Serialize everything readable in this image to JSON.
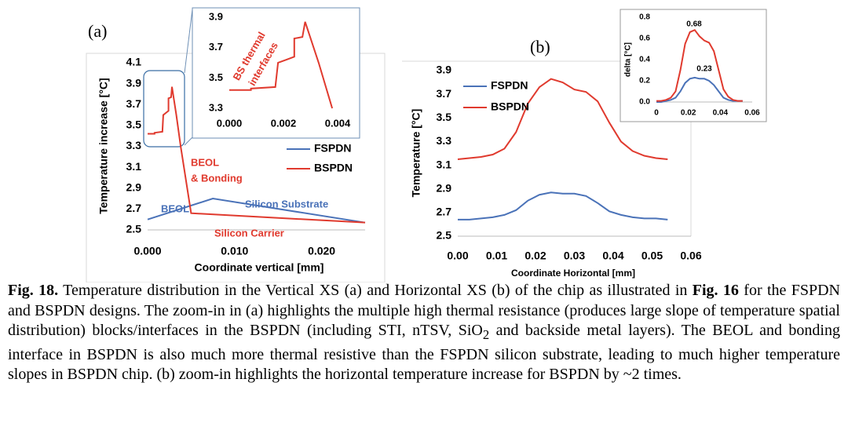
{
  "chart_data": [
    {
      "type": "line",
      "panel_label": "(a)",
      "x_label": "Coordinate vertical [mm]",
      "y_label": "Temperature increase [°C]",
      "xlim": [
        0,
        0.025
      ],
      "ylim": [
        2.5,
        4.1
      ],
      "xticks": [
        {
          "value": 0,
          "label": "0.000"
        },
        {
          "value": 0.01,
          "label": "0.010"
        },
        {
          "value": 0.02,
          "label": "0.020"
        }
      ],
      "yticks": [
        2.5,
        2.7,
        2.9,
        3.1,
        3.3,
        3.5,
        3.7,
        3.9,
        4.1
      ],
      "series": [
        {
          "name": "FSPDN",
          "color": "#4a72b8",
          "x": [
            0,
            0.0075,
            0.025
          ],
          "values": [
            2.6,
            2.8,
            2.57
          ]
        },
        {
          "name": "BSPDN",
          "color": "#e03a2e",
          "x": [
            0,
            0.0008,
            0.0008,
            0.0017,
            0.0018,
            0.0021,
            0.0024,
            0.0024,
            0.0027,
            0.0028,
            0.0033,
            0.0038,
            0.005,
            0.025
          ],
          "values": [
            3.42,
            3.42,
            3.43,
            3.44,
            3.6,
            3.62,
            3.64,
            3.76,
            3.77,
            3.87,
            3.6,
            3.3,
            2.66,
            2.57
          ]
        }
      ],
      "annotations": [
        {
          "text": "BEOL",
          "color": "#4a72b8"
        },
        {
          "text": "Silicon Substrate",
          "color": "#4a72b8"
        },
        {
          "text": "BEOL",
          "color": "#e03a2e"
        },
        {
          "text": "& Bonding",
          "color": "#e03a2e"
        },
        {
          "text": "Silicon Carrier",
          "color": "#e03a2e"
        }
      ]
    },
    {
      "type": "line",
      "xlim": [
        0,
        0.004
      ],
      "ylim": [
        3.3,
        3.9
      ],
      "xticks": [
        {
          "value": 0,
          "label": "0.000"
        },
        {
          "value": 0.002,
          "label": "0.002"
        },
        {
          "value": 0.004,
          "label": "0.004"
        }
      ],
      "yticks": [
        3.3,
        3.5,
        3.7,
        3.9
      ],
      "series": [
        {
          "color": "#e03a2e",
          "x": [
            0,
            0.0008,
            0.0008,
            0.0017,
            0.0018,
            0.0021,
            0.0024,
            0.0024,
            0.0027,
            0.0028,
            0.0033,
            0.0038
          ],
          "values": [
            3.42,
            3.42,
            3.43,
            3.44,
            3.6,
            3.62,
            3.64,
            3.76,
            3.77,
            3.87,
            3.6,
            3.3
          ]
        }
      ],
      "annotations": [
        {
          "text": "BS thermal",
          "color": "#e03a2e"
        },
        {
          "text": "interfaces",
          "color": "#e03a2e"
        }
      ]
    },
    {
      "type": "line",
      "panel_label": "(b)",
      "x_label": "Coordinate Horizontal [mm]",
      "y_label": "Temperature [°C]",
      "xlim": [
        0,
        0.06
      ],
      "ylim": [
        2.5,
        3.9
      ],
      "xticks": [
        {
          "value": 0,
          "label": "0.00"
        },
        0.01,
        0.02,
        0.03,
        0.04,
        0.05,
        0.06
      ],
      "yticks": [
        2.5,
        2.7,
        2.9,
        3.1,
        3.3,
        3.5,
        3.7,
        3.9
      ],
      "x": [
        0,
        0.003,
        0.006,
        0.009,
        0.012,
        0.015,
        0.018,
        0.021,
        0.024,
        0.027,
        0.03,
        0.033,
        0.036,
        0.039,
        0.042,
        0.045,
        0.048,
        0.051,
        0.054
      ],
      "series": [
        {
          "name": "FSPDN",
          "color": "#4a72b8",
          "values": [
            2.64,
            2.64,
            2.65,
            2.66,
            2.68,
            2.72,
            2.8,
            2.85,
            2.87,
            2.86,
            2.86,
            2.84,
            2.78,
            2.71,
            2.68,
            2.66,
            2.65,
            2.65,
            2.64
          ]
        },
        {
          "name": "BSPDN",
          "color": "#e03a2e",
          "values": [
            3.15,
            3.16,
            3.17,
            3.19,
            3.24,
            3.38,
            3.62,
            3.76,
            3.83,
            3.8,
            3.74,
            3.72,
            3.64,
            3.46,
            3.3,
            3.22,
            3.18,
            3.16,
            3.15
          ]
        }
      ]
    },
    {
      "type": "line",
      "y_label": "delta [°C]",
      "xlim": [
        0,
        0.06
      ],
      "ylim": [
        0,
        0.8
      ],
      "xticks": [
        0,
        0.02,
        0.04,
        0.06
      ],
      "yticks": [
        {
          "value": 0,
          "label": "0.0"
        },
        0.2,
        0.4,
        0.6,
        0.8
      ],
      "x": [
        0,
        0.003,
        0.006,
        0.009,
        0.012,
        0.015,
        0.018,
        0.021,
        0.024,
        0.027,
        0.03,
        0.033,
        0.036,
        0.039,
        0.042,
        0.045,
        0.048,
        0.051,
        0.054
      ],
      "series": [
        {
          "color": "#4a72b8",
          "values": [
            0,
            0,
            0.01,
            0.02,
            0.04,
            0.1,
            0.18,
            0.22,
            0.23,
            0.22,
            0.22,
            0.2,
            0.16,
            0.1,
            0.04,
            0.02,
            0.01,
            0.01,
            0.01
          ]
        },
        {
          "color": "#e03a2e",
          "values": [
            0.01,
            0.01,
            0.02,
            0.04,
            0.1,
            0.3,
            0.55,
            0.66,
            0.68,
            0.62,
            0.58,
            0.56,
            0.48,
            0.3,
            0.12,
            0.05,
            0.02,
            0.01,
            0.01
          ]
        }
      ],
      "annotations": [
        {
          "text": "0.68",
          "color": "#000000"
        },
        {
          "text": "0.23",
          "color": "#000000"
        }
      ]
    }
  ],
  "caption": {
    "label": "Fig. 18.",
    "text1": " Temperature distribution in the Vertical XS (a) and Horizontal XS (b) of the chip as illustrated in ",
    "ref": "Fig. 16",
    "text2": " for the FSPDN and BSPDN designs. The zoom-in in (a) highlights the multiple high thermal resistance (produces large slope of temperature spatial distribution) blocks/interfaces in the BSPDN (including STI, nTSV, SiO",
    "sub": "2",
    "text3": " and backside metal layers). The BEOL and bonding interface in BSPDN is also much more thermal resistive than the FSPDN silicon substrate, leading to much higher temperature slopes in BSPDN chip. (b) zoom-in highlights the horizontal temperature increase for BSPDN by ~2 times."
  }
}
